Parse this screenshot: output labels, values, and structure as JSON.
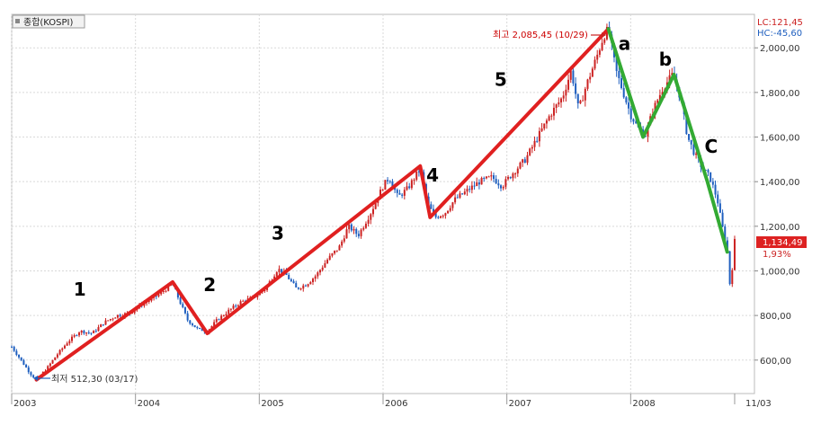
{
  "title": "종합(KOSPI)",
  "lc_label": "LC:121,45",
  "hc_label": "HC:-45,60",
  "current_price": "1,134,49",
  "current_change": "1,93%",
  "high_annotation": "최고 2,085,45 (10/29)",
  "low_annotation": "최저 512,30 (03/17)",
  "colors": {
    "up": "#cc2222",
    "down": "#1f5fbf",
    "impulse": "#e02020",
    "corrective": "#33aa33",
    "grid": "#d9d9d9"
  },
  "chart_data": {
    "type": "line",
    "ylim": [
      450,
      2150
    ],
    "xlim": [
      2003.0,
      2009.0
    ],
    "y_ticks": [
      "600,00",
      "800,00",
      "1,000,00",
      "1,200,00",
      "1,400,00",
      "1,600,00",
      "1,800,00",
      "2,000,00"
    ],
    "y_tick_values": [
      600,
      800,
      1000,
      1200,
      1400,
      1600,
      1800,
      2000
    ],
    "x_ticks": [
      "2003",
      "2004",
      "2005",
      "2006",
      "2007",
      "2008",
      "11/03"
    ],
    "x_tick_values": [
      2003.0,
      2004.0,
      2005.0,
      2006.0,
      2007.0,
      2008.0,
      2008.84
    ],
    "series": [
      {
        "name": "impulse",
        "x": [
          2003.2,
          2004.3,
          2004.58,
          2006.3,
          2006.38,
          2007.82
        ],
        "y": [
          512,
          950,
          720,
          1470,
          1240,
          2085
        ]
      },
      {
        "name": "corrective",
        "x": [
          2007.82,
          2008.1,
          2008.35,
          2008.62,
          2008.78
        ],
        "y": [
          2085,
          1600,
          1880,
          1400,
          1085
        ]
      }
    ],
    "wave_labels": [
      {
        "text": "1",
        "x": 2003.55,
        "y": 890
      },
      {
        "text": "2",
        "x": 2004.6,
        "y": 910
      },
      {
        "text": "3",
        "x": 2005.15,
        "y": 1140
      },
      {
        "text": "4",
        "x": 2006.4,
        "y": 1400
      },
      {
        "text": "5",
        "x": 2006.95,
        "y": 1830
      },
      {
        "text": "a",
        "x": 2007.95,
        "y": 1990
      },
      {
        "text": "b",
        "x": 2008.28,
        "y": 1920
      },
      {
        "text": "C",
        "x": 2008.65,
        "y": 1530
      }
    ],
    "price_path": [
      [
        2003.0,
        660
      ],
      [
        2003.05,
        620
      ],
      [
        2003.1,
        580
      ],
      [
        2003.15,
        540
      ],
      [
        2003.2,
        512
      ],
      [
        2003.28,
        560
      ],
      [
        2003.36,
        620
      ],
      [
        2003.45,
        680
      ],
      [
        2003.55,
        730
      ],
      [
        2003.65,
        720
      ],
      [
        2003.75,
        770
      ],
      [
        2003.85,
        800
      ],
      [
        2003.95,
        810
      ],
      [
        2004.05,
        850
      ],
      [
        2004.15,
        880
      ],
      [
        2004.25,
        920
      ],
      [
        2004.3,
        940
      ],
      [
        2004.36,
        860
      ],
      [
        2004.42,
        780
      ],
      [
        2004.5,
        740
      ],
      [
        2004.58,
        730
      ],
      [
        2004.66,
        780
      ],
      [
        2004.75,
        820
      ],
      [
        2004.85,
        860
      ],
      [
        2004.95,
        880
      ],
      [
        2005.05,
        920
      ],
      [
        2005.15,
        1010
      ],
      [
        2005.22,
        980
      ],
      [
        2005.3,
        920
      ],
      [
        2005.38,
        940
      ],
      [
        2005.46,
        980
      ],
      [
        2005.55,
        1050
      ],
      [
        2005.65,
        1110
      ],
      [
        2005.72,
        1200
      ],
      [
        2005.8,
        1160
      ],
      [
        2005.9,
        1260
      ],
      [
        2006.0,
        1380
      ],
      [
        2006.05,
        1420
      ],
      [
        2006.12,
        1330
      ],
      [
        2006.2,
        1370
      ],
      [
        2006.3,
        1460
      ],
      [
        2006.36,
        1300
      ],
      [
        2006.42,
        1240
      ],
      [
        2006.5,
        1260
      ],
      [
        2006.58,
        1320
      ],
      [
        2006.68,
        1360
      ],
      [
        2006.78,
        1400
      ],
      [
        2006.88,
        1420
      ],
      [
        2006.96,
        1380
      ],
      [
        2007.05,
        1440
      ],
      [
        2007.15,
        1500
      ],
      [
        2007.25,
        1600
      ],
      [
        2007.35,
        1700
      ],
      [
        2007.45,
        1780
      ],
      [
        2007.52,
        1900
      ],
      [
        2007.58,
        1720
      ],
      [
        2007.64,
        1830
      ],
      [
        2007.72,
        1950
      ],
      [
        2007.78,
        2050
      ],
      [
        2007.82,
        2085
      ],
      [
        2007.88,
        1900
      ],
      [
        2007.94,
        1800
      ],
      [
        2008.0,
        1700
      ],
      [
        2008.06,
        1640
      ],
      [
        2008.12,
        1610
      ],
      [
        2008.18,
        1720
      ],
      [
        2008.26,
        1820
      ],
      [
        2008.34,
        1880
      ],
      [
        2008.4,
        1780
      ],
      [
        2008.46,
        1600
      ],
      [
        2008.52,
        1520
      ],
      [
        2008.58,
        1460
      ],
      [
        2008.64,
        1420
      ],
      [
        2008.7,
        1320
      ],
      [
        2008.74,
        1200
      ],
      [
        2008.78,
        1100
      ],
      [
        2008.8,
        940
      ],
      [
        2008.82,
        1010
      ],
      [
        2008.84,
        1134
      ]
    ]
  }
}
